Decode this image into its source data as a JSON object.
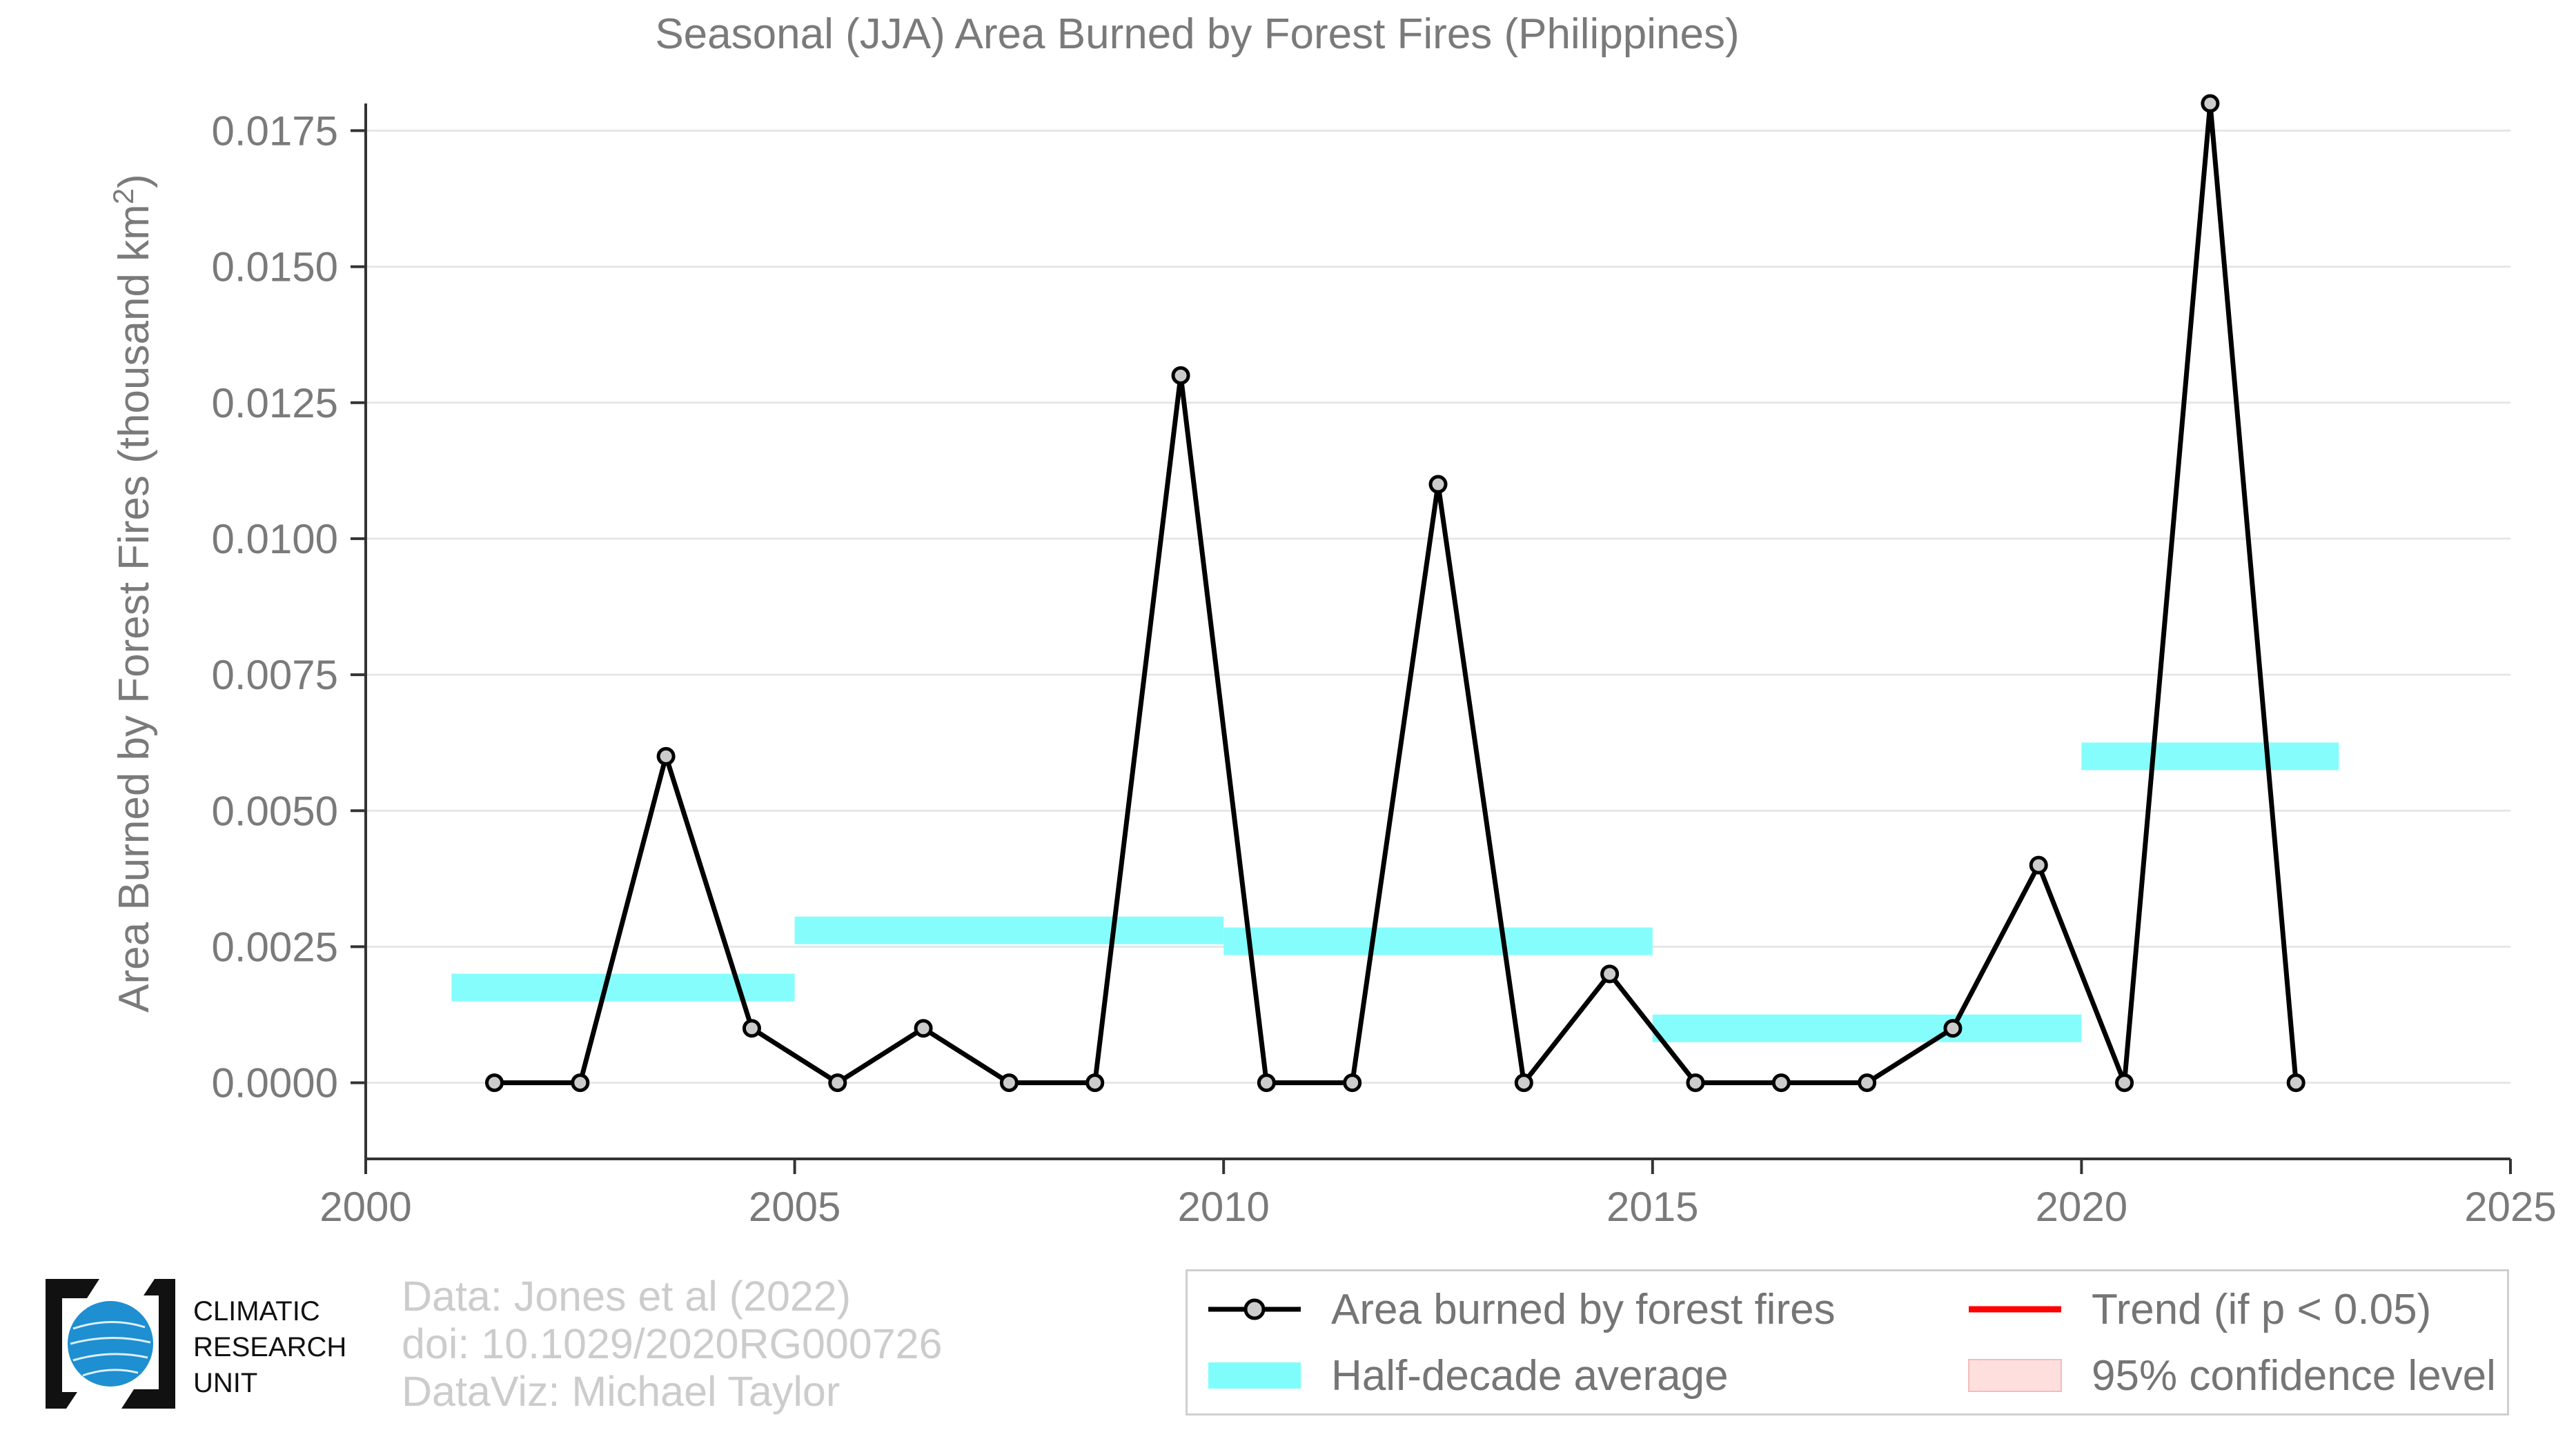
{
  "chart_data": {
    "type": "line",
    "title": "Seasonal (JJA) Area Burned by Forest Fires (Philippines)",
    "ylabel": "Area Burned by Forest Fires (thousand km²)",
    "xlabel": "",
    "xlim": [
      2000,
      2025
    ],
    "ylim": [
      -0.0014,
      0.018
    ],
    "x_ticks": [
      "2000",
      "2005",
      "2010",
      "2015",
      "2020",
      "2025"
    ],
    "y_ticks": [
      "0.0000",
      "0.0025",
      "0.0050",
      "0.0075",
      "0.0100",
      "0.0125",
      "0.0150",
      "0.0175"
    ],
    "grid": true,
    "series": [
      {
        "name": "Area burned by forest fires",
        "color": "#000000",
        "marker_fill": "#cccccc",
        "x": [
          2001.5,
          2002.5,
          2003.5,
          2004.5,
          2005.5,
          2006.5,
          2007.5,
          2008.5,
          2009.5,
          2010.5,
          2011.5,
          2012.5,
          2013.5,
          2014.5,
          2015.5,
          2016.5,
          2017.5,
          2018.5,
          2019.5,
          2020.5,
          2021.5,
          2022.5
        ],
        "values": [
          0,
          0,
          0.006,
          0.001,
          0,
          0.001,
          0,
          0,
          0.013,
          0,
          0,
          0.011,
          0,
          0.002,
          0,
          0,
          0,
          0.001,
          0.004,
          0,
          0.018,
          0
        ]
      }
    ],
    "half_decade_average": {
      "name": "Half-decade average",
      "color": "#7ffdfd",
      "segments": [
        {
          "start": 2001,
          "end": 2005,
          "value": 0.00175
        },
        {
          "start": 2005,
          "end": 2010,
          "value": 0.0028
        },
        {
          "start": 2010,
          "end": 2015,
          "value": 0.0026
        },
        {
          "start": 2015,
          "end": 2020,
          "value": 0.001
        },
        {
          "start": 2020,
          "end": 2023,
          "value": 0.006
        }
      ]
    },
    "legend_position": "bottom-right"
  },
  "legend": {
    "line_label": "Area burned by forest fires",
    "average_label": "Half-decade average",
    "trend_label": "Trend (if p < 0.05)",
    "confidence_label": "95% confidence level",
    "trend_color": "#ff0000",
    "confidence_color": "#ffdede"
  },
  "credits": {
    "line1": "Data: Jones et al (2022)",
    "line2": "doi: 10.1029/2020RG000726",
    "line3": "DataViz: Michael Taylor"
  },
  "logo": {
    "line1": "CLIMATIC",
    "line2": "RESEARCH",
    "line3": "UNIT",
    "globe_color": "#1e8fd1"
  }
}
